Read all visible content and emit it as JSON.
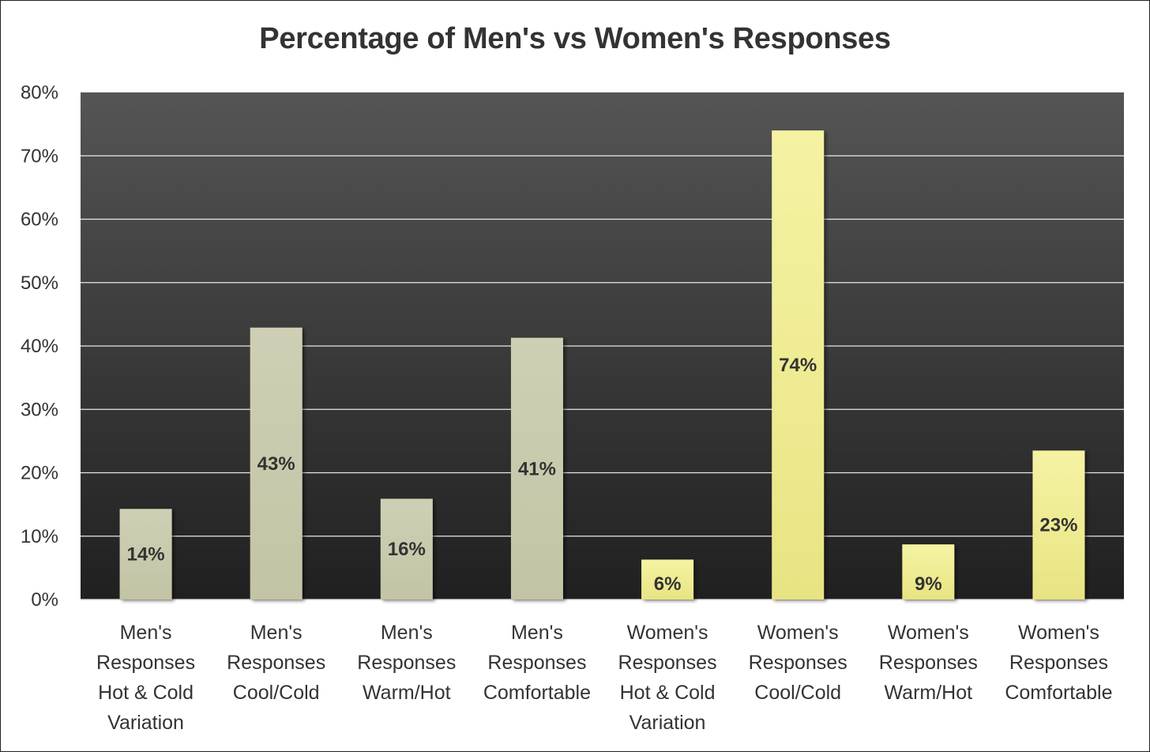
{
  "chart_data": {
    "type": "bar",
    "title": "Percentage of Men's vs Women's Responses",
    "xlabel": "",
    "ylabel": "",
    "ylim": [
      0,
      0.8
    ],
    "y_ticks": [
      0,
      0.1,
      0.2,
      0.3,
      0.4,
      0.5,
      0.6,
      0.7,
      0.8
    ],
    "y_tick_labels": [
      "0%",
      "10%",
      "20%",
      "30%",
      "40%",
      "50%",
      "60%",
      "70%",
      "80%"
    ],
    "grid": true,
    "legend": "none",
    "categories": [
      [
        "Men's",
        "Responses",
        "Hot & Cold",
        "Variation"
      ],
      [
        "Men's",
        "Responses",
        "Cool/Cold"
      ],
      [
        "Men's",
        "Responses",
        "Warm/Hot"
      ],
      [
        "Men's",
        "Responses",
        "Comfortable"
      ],
      [
        "Women's",
        "Responses",
        "Hot & Cold",
        "Variation"
      ],
      [
        "Women's",
        "Responses",
        "Cool/Cold"
      ],
      [
        "Women's",
        "Responses",
        "Warm/Hot"
      ],
      [
        "Women's",
        "Responses",
        "Comfortable"
      ]
    ],
    "values": [
      0.143,
      0.429,
      0.159,
      0.413,
      0.063,
      0.74,
      0.087,
      0.235
    ],
    "data_labels": [
      "14%",
      "43%",
      "16%",
      "41%",
      "6%",
      "74%",
      "9%",
      "23%"
    ],
    "colors": {
      "men_bar_top": "#cfcfb5",
      "men_bar_bottom": "#c3c3a5",
      "women_bar_top": "#f5f3a3",
      "women_bar_bottom": "#e8e483",
      "plot_bg_top": "#555555",
      "plot_bg_bottom": "#202020",
      "gridline": "#e8e8e8",
      "text": "#333333"
    }
  }
}
